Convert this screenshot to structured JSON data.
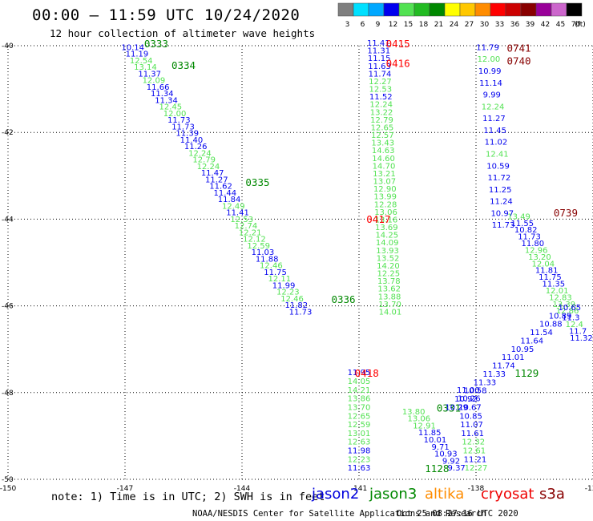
{
  "header": {
    "title": "00:00 – 11:59 UTC 10/24/2020",
    "subtitle": "12 hour collection of altimeter wave heights"
  },
  "colorbar": {
    "unit": "(ft)",
    "bins": [
      {
        "label": "3",
        "color": "#7f7f7f"
      },
      {
        "label": "6",
        "color": "#00e0ff"
      },
      {
        "label": "9",
        "color": "#00a8ff"
      },
      {
        "label": "12",
        "color": "#0000ee"
      },
      {
        "label": "15",
        "color": "#52e252"
      },
      {
        "label": "18",
        "color": "#22bb22"
      },
      {
        "label": "21",
        "color": "#008800"
      },
      {
        "label": "24",
        "color": "#ffff00"
      },
      {
        "label": "27",
        "color": "#ffc800"
      },
      {
        "label": "30",
        "color": "#ff8c00"
      },
      {
        "label": "33",
        "color": "#ff0000"
      },
      {
        "label": "36",
        "color": "#cc0000"
      },
      {
        "label": "39",
        "color": "#880000"
      },
      {
        "label": "42",
        "color": "#990099"
      },
      {
        "label": "45",
        "color": "#cc66cc"
      },
      {
        "label": "70",
        "color": "#000000"
      }
    ]
  },
  "chart_data": {
    "type": "scatter",
    "title": "00:00 – 11:59 UTC 10/24/2020",
    "subtitle": "12 hour collection of altimeter wave heights",
    "xlim": [
      -150,
      -135
    ],
    "ylim": [
      -50,
      -40
    ],
    "x_ticks": [
      {
        "value": -150,
        "label": "-150"
      },
      {
        "value": -147,
        "label": "-147"
      },
      {
        "value": -144,
        "label": "-144"
      },
      {
        "value": -141,
        "label": "-141"
      },
      {
        "value": -138,
        "label": "-138"
      },
      {
        "value": -135,
        "label": "-135"
      }
    ],
    "y_ticks": [
      {
        "value": -40,
        "label": "-40"
      },
      {
        "value": -42,
        "label": "-42"
      },
      {
        "value": -44,
        "label": "-44"
      },
      {
        "value": -46,
        "label": "-46"
      },
      {
        "value": -48,
        "label": "-48"
      },
      {
        "value": -50,
        "label": "-50"
      }
    ],
    "grid": true,
    "tracks": [
      {
        "start": [
          -146.8,
          -40.1
        ],
        "end": [
          -142.5,
          -46.2
        ],
        "values": [
          "10.14",
          "11.19",
          "12.54",
          "13.14",
          "11.37",
          "12.09",
          "11.66",
          "11.34",
          "11.34",
          "12.45",
          "12.00",
          "11.73",
          "11.73",
          "11.39",
          "11.40",
          "11.26",
          "12.24",
          "12.79",
          "12.24",
          "11.47",
          "11.27",
          "11.62",
          "11.44",
          "11.84",
          "12.49",
          "11.41",
          "12.53",
          "12.74",
          "12.21",
          "12.12",
          "12.59",
          "11.03",
          "11.88",
          "12.46",
          "11.75",
          "12.11",
          "11.99",
          "12.23",
          "12.46",
          "11.82",
          "11.73"
        ],
        "times": [
          {
            "label": "0333",
            "lon": -146.2,
            "lat": -40.0,
            "color": "#008800"
          },
          {
            "label": "0334",
            "lon": -145.5,
            "lat": -40.5,
            "color": "#008800"
          },
          {
            "label": "0335",
            "lon": -143.6,
            "lat": -43.2,
            "color": "#008800"
          },
          {
            "label": "0336",
            "lon": -141.4,
            "lat": -45.9,
            "color": "#008800"
          }
        ]
      },
      {
        "start": [
          -140.5,
          -40.0
        ],
        "end": [
          -140.2,
          -46.2
        ],
        "values": [
          "11.41",
          "11.31",
          "11.15",
          "11.63",
          "11.74",
          "12.27",
          "12.53",
          "11.52",
          "12.24",
          "13.22",
          "12.79",
          "12.65",
          "12.57",
          "13.43",
          "14.63",
          "14.60",
          "14.70",
          "13.21",
          "13.07",
          "12.90",
          "13.99",
          "12.28",
          "13.06",
          "13.16",
          "13.69",
          "14.25",
          "14.09",
          "13.93",
          "13.52",
          "14.20",
          "12.25",
          "13.78",
          "13.62",
          "13.88",
          "13.70",
          "14.01"
        ],
        "times": [
          {
            "label": "0415",
            "lon": -140.0,
            "lat": -40.0,
            "color": "#ff0000"
          },
          {
            "label": "0416",
            "lon": -140.0,
            "lat": -40.45,
            "color": "#ff0000"
          },
          {
            "label": "0417",
            "lon": -140.5,
            "lat": -44.05,
            "color": "#ff0000"
          }
        ]
      },
      {
        "start": [
          -141.0,
          -47.6
        ],
        "end": [
          -141.0,
          -49.8
        ],
        "values": [
          "11.95",
          "14.05",
          "14.21",
          "13.86",
          "13.70",
          "12.65",
          "12.59",
          "13.01",
          "12.63",
          "11.98",
          "12.23",
          "11.63"
        ],
        "times": [
          {
            "label": "0418",
            "lon": -140.8,
            "lat": -47.6,
            "color": "#ff0000"
          }
        ]
      },
      {
        "start": [
          -139.6,
          -48.5
        ],
        "end": [
          -138.5,
          -49.8
        ],
        "values": [
          "13.80",
          "13.06",
          "12.91",
          "11.85",
          "10.01",
          "9.71",
          "10.93",
          "9.92",
          "9.37"
        ],
        "times": [
          {
            "label": "1128",
            "lon": -139.0,
            "lat": -49.8,
            "color": "#008800"
          }
        ]
      },
      {
        "start": [
          -138.2,
          -48.0
        ],
        "end": [
          -138.0,
          -49.8
        ],
        "values": [
          "11.00",
          "10.26",
          "10.67",
          "10.85",
          "11.07",
          "11.61",
          "12.32",
          "12.61",
          "11.21",
          "12.27"
        ],
        "times": [
          {
            "label": "0331",
            "lon": -138.7,
            "lat": -48.4,
            "color": "#008800"
          }
        ]
      },
      {
        "start": [
          -137.7,
          -40.1
        ],
        "end": [
          -137.3,
          -44.2
        ],
        "values": [
          "11.79",
          "12.00",
          "10.99",
          "11.14",
          "9.99",
          "12.24",
          "11.27",
          "11.45",
          "11.02",
          "12.41",
          "10.59",
          "11.72",
          "11.25",
          "11.24",
          "10.97",
          "11.73"
        ],
        "times": [
          {
            "label": "0741",
            "lon": -136.9,
            "lat": -40.1,
            "color": "#880000"
          },
          {
            "label": "0740",
            "lon": -136.9,
            "lat": -40.4,
            "color": "#880000"
          },
          {
            "label": "0739",
            "lon": -135.7,
            "lat": -43.9,
            "color": "#880000"
          }
        ]
      },
      {
        "start": [
          -136.9,
          -44.0
        ],
        "end": [
          -135.3,
          -46.8
        ],
        "values": [
          "13.49",
          "11.55",
          "10.82",
          "11.73",
          "11.80",
          "12.96",
          "13.20",
          "12.04",
          "11.81",
          "11.75",
          "11.35",
          "12.01",
          "12.83",
          "13.39",
          "12.86",
          "11.3",
          "12.4",
          "11.7",
          "11.32"
        ]
      },
      {
        "start": [
          -135.6,
          -46.1
        ],
        "end": [
          -138.5,
          -48.4
        ],
        "values": [
          "10.65",
          "10.89",
          "10.88",
          "11.54",
          "11.64",
          "10.95",
          "11.01",
          "11.74",
          "11.33",
          "11.33",
          "10.58",
          "10.92",
          "10.29"
        ],
        "times": [
          {
            "label": "1129",
            "lon": -136.7,
            "lat": -47.6,
            "color": "#008800"
          }
        ]
      }
    ]
  },
  "footer": {
    "note": "note: 1) Time is in UTC; 2) SWH is in feet",
    "legend": [
      {
        "name": "jason2",
        "color": "#0000dd"
      },
      {
        "name": "jason3",
        "color": "#008800"
      },
      {
        "name": "altika",
        "color": "#ff8c00"
      },
      {
        "name": "cryosat",
        "color": "#ee0000"
      },
      {
        "name": "s3a",
        "color": "#880000"
      }
    ],
    "credit": "NOAA/NESDIS Center for Satellite Applications and Research",
    "timestamp": "Oct 25 08:27:16 UTC 2020"
  }
}
